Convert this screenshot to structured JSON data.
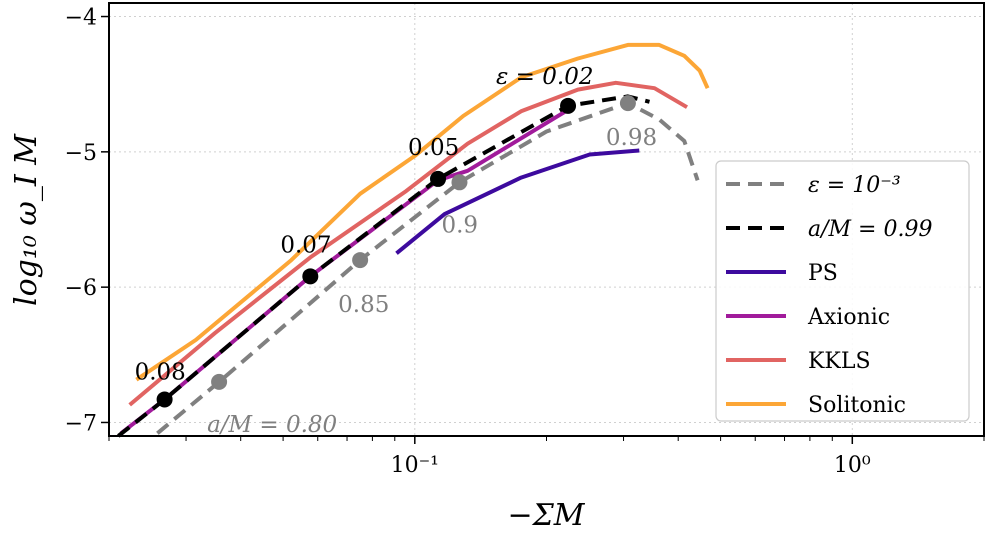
{
  "chart_data": {
    "type": "line",
    "xlabel": "−ΣM",
    "ylabel": "log₁₀ ω_I M",
    "xscale": "log",
    "xlim": [
      0.02,
      2.0
    ],
    "ylim": [
      -7.1,
      -3.9
    ],
    "grid": true,
    "legend_position": "center-right",
    "xticks": [
      {
        "value": 0.1,
        "label": "10⁻¹"
      },
      {
        "value": 1.0,
        "label": "10⁰"
      }
    ],
    "yticks": [
      {
        "value": -4,
        "label": "−4"
      },
      {
        "value": -5,
        "label": "−5"
      },
      {
        "value": -6,
        "label": "−6"
      },
      {
        "value": -7,
        "label": "−7"
      }
    ],
    "series": [
      {
        "name": "ε = 10⁻³",
        "color": "#808080",
        "style": "dashed",
        "x": [
          0.0258,
          0.0357,
          0.075,
          0.1265,
          0.2,
          0.307,
          0.362,
          0.413,
          0.443
        ],
        "y": [
          -7.08,
          -6.7,
          -5.8,
          -5.225,
          -4.85,
          -4.64,
          -4.76,
          -4.92,
          -5.21
        ]
      },
      {
        "name": "a/M = 0.99",
        "color": "#000000",
        "style": "dashed",
        "x": [
          0.021,
          0.0268,
          0.0577,
          0.113,
          0.224,
          0.307,
          0.344
        ],
        "y": [
          -7.1,
          -6.83,
          -5.92,
          -5.2,
          -4.66,
          -4.59,
          -4.63
        ]
      },
      {
        "name": "PS",
        "color": "#3d0a9e",
        "style": "solid",
        "x": [
          0.0908,
          0.117,
          0.175,
          0.251,
          0.326
        ],
        "y": [
          -5.75,
          -5.46,
          -5.19,
          -5.02,
          -4.99
        ]
      },
      {
        "name": "Axionic",
        "color": "#a11b9b",
        "style": "solid",
        "x": [
          0.0213,
          0.0268,
          0.0577,
          0.113,
          0.132,
          0.224
        ],
        "y": [
          -7.08,
          -6.83,
          -5.92,
          -5.21,
          -5.14,
          -4.69
        ]
      },
      {
        "name": "KKLS",
        "color": "#e16462",
        "style": "solid",
        "x": [
          0.0223,
          0.0349,
          0.0577,
          0.0955,
          0.132,
          0.175,
          0.236,
          0.288,
          0.353,
          0.419
        ],
        "y": [
          -6.87,
          -6.34,
          -5.78,
          -5.29,
          -4.94,
          -4.7,
          -4.54,
          -4.49,
          -4.53,
          -4.67
        ]
      },
      {
        "name": "Solitonic",
        "color": "#fca636",
        "style": "solid",
        "x": [
          0.0231,
          0.0316,
          0.0522,
          0.075,
          0.1,
          0.129,
          0.175,
          0.236,
          0.307,
          0.362,
          0.413,
          0.448,
          0.467
        ],
        "y": [
          -6.684,
          -6.39,
          -5.8,
          -5.31,
          -5.03,
          -4.735,
          -4.45,
          -4.31,
          -4.21,
          -4.21,
          -4.29,
          -4.4,
          -4.53
        ]
      }
    ],
    "markers": [
      {
        "series": "a/M = 0.99",
        "color": "#000000",
        "x": 0.0268,
        "y": -6.83,
        "label": "0.08"
      },
      {
        "series": "a/M = 0.99",
        "color": "#000000",
        "x": 0.0577,
        "y": -5.92,
        "label": "0.07"
      },
      {
        "series": "a/M = 0.99",
        "color": "#000000",
        "x": 0.113,
        "y": -5.2,
        "label": "0.05"
      },
      {
        "series": "a/M = 0.99",
        "color": "#000000",
        "x": 0.224,
        "y": -4.66,
        "label": "ε = 0.02"
      },
      {
        "series": "ε = 10⁻³",
        "color": "#808080",
        "x": 0.0357,
        "y": -6.7,
        "label": "a/M = 0.80"
      },
      {
        "series": "ε = 10⁻³",
        "color": "#808080",
        "x": 0.075,
        "y": -5.8,
        "label": "0.85"
      },
      {
        "series": "ε = 10⁻³",
        "color": "#808080",
        "x": 0.1265,
        "y": -5.225,
        "label": "0.9"
      },
      {
        "series": "ε = 10⁻³",
        "color": "#808080",
        "x": 0.307,
        "y": -4.64,
        "label": "0.98"
      }
    ]
  }
}
